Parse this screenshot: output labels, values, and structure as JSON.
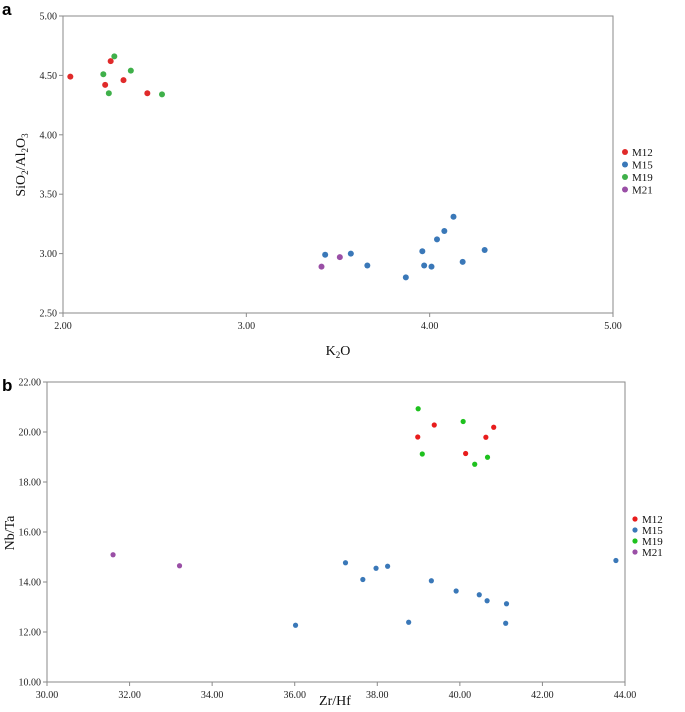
{
  "colors": {
    "M12": "#e02a2a",
    "M15": "#3a78b8",
    "M19": "#3fb04a",
    "M21": "#9a4fa6"
  },
  "colors_b": {
    "M12": "#e81c1c",
    "M15": "#3a78b8",
    "M19": "#1ec11e",
    "M21": "#9a4fa6"
  },
  "chart_data": [
    {
      "panel": "a",
      "type": "scatter",
      "xlabel": "K2O",
      "ylabel": "SiO2/Al2O3",
      "xlim": [
        2.0,
        5.0
      ],
      "ylim": [
        2.5,
        5.0
      ],
      "xticks": [
        "2.00",
        "3.00",
        "4.00",
        "5.00"
      ],
      "yticks": [
        "2.50",
        "3.00",
        "3.50",
        "4.00",
        "4.50",
        "5.00"
      ],
      "legend": [
        "M12",
        "M15",
        "M19",
        "M21"
      ],
      "series": [
        {
          "name": "M12",
          "points": [
            [
              2.04,
              4.49
            ],
            [
              2.26,
              4.62
            ],
            [
              2.23,
              4.42
            ],
            [
              2.33,
              4.46
            ],
            [
              2.46,
              4.35
            ]
          ]
        },
        {
          "name": "M15",
          "points": [
            [
              3.43,
              2.99
            ],
            [
              3.57,
              3.0
            ],
            [
              3.66,
              2.9
            ],
            [
              3.87,
              2.8
            ],
            [
              3.96,
              3.02
            ],
            [
              3.97,
              2.9
            ],
            [
              4.01,
              2.89
            ],
            [
              4.04,
              3.12
            ],
            [
              4.08,
              3.19
            ],
            [
              4.13,
              3.31
            ],
            [
              4.18,
              2.93
            ],
            [
              4.3,
              3.03
            ]
          ]
        },
        {
          "name": "M19",
          "points": [
            [
              2.28,
              4.66
            ],
            [
              2.22,
              4.51
            ],
            [
              2.37,
              4.54
            ],
            [
              2.25,
              4.35
            ],
            [
              2.54,
              4.34
            ]
          ]
        },
        {
          "name": "M21",
          "points": [
            [
              3.41,
              2.89
            ],
            [
              3.51,
              2.97
            ]
          ]
        }
      ]
    },
    {
      "panel": "b",
      "type": "scatter",
      "xlabel": "Zr/Hf",
      "ylabel": "Nb/Ta",
      "xlim": [
        30.0,
        44.0
      ],
      "ylim": [
        10.0,
        22.0
      ],
      "xticks": [
        "30.00",
        "32.00",
        "34.00",
        "36.00",
        "38.00",
        "40.00",
        "42.00",
        "44.00"
      ],
      "yticks": [
        "10.00",
        "12.00",
        "14.00",
        "16.00",
        "18.00",
        "20.00",
        "22.00"
      ],
      "legend": [
        "M12",
        "M15",
        "M19",
        "M21"
      ],
      "series": [
        {
          "name": "M12",
          "points": [
            [
              38.98,
              19.8
            ],
            [
              39.38,
              20.28
            ],
            [
              40.14,
              19.14
            ],
            [
              40.63,
              19.79
            ],
            [
              40.82,
              20.19
            ]
          ]
        },
        {
          "name": "M15",
          "points": [
            [
              36.02,
              12.27
            ],
            [
              37.23,
              14.77
            ],
            [
              37.65,
              14.1
            ],
            [
              37.97,
              14.55
            ],
            [
              38.25,
              14.63
            ],
            [
              38.76,
              12.39
            ],
            [
              39.31,
              14.05
            ],
            [
              39.91,
              13.64
            ],
            [
              40.47,
              13.49
            ],
            [
              40.66,
              13.25
            ],
            [
              41.13,
              13.13
            ],
            [
              41.11,
              12.35
            ],
            [
              43.78,
              14.86
            ]
          ]
        },
        {
          "name": "M19",
          "points": [
            [
              38.99,
              20.93
            ],
            [
              39.09,
              19.12
            ],
            [
              40.08,
              20.42
            ],
            [
              40.36,
              18.71
            ],
            [
              40.67,
              18.99
            ]
          ]
        },
        {
          "name": "M21",
          "points": [
            [
              31.6,
              15.09
            ],
            [
              33.21,
              14.65
            ]
          ]
        }
      ]
    }
  ]
}
